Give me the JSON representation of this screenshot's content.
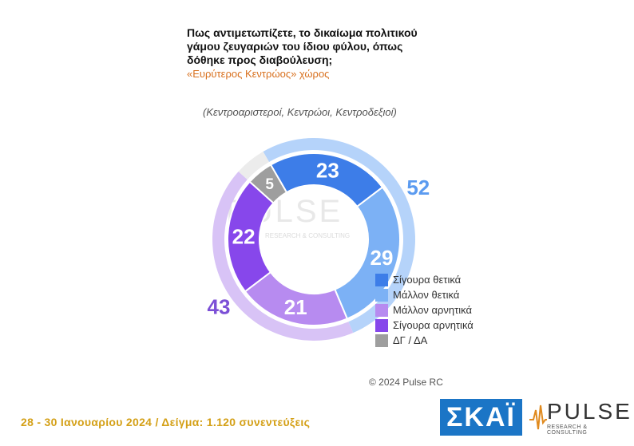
{
  "title": {
    "lines": [
      "Πως αντιμετωπίζετε, το δικαίωμα πολιτικού",
      "γάμου ζευγαριών του ίδιου φύλου, όπως",
      "δόθηκε προς διαβούλευση;"
    ],
    "scope": "«Ευρύτερος Κεντρώος» χώρος"
  },
  "subtitle": "(Κεντροαριστεροί, Κεντρώοι, Κεντροδεξιοί)",
  "chart_data": {
    "type": "pie",
    "variant": "donut",
    "slices": [
      {
        "name": "Σίγουρα θετικά",
        "value": 23,
        "color": "#3d7de8"
      },
      {
        "name": "Μάλλον θετικά",
        "value": 29,
        "color": "#7cb1f5"
      },
      {
        "name": "Μάλλον αρνητικά",
        "value": 21,
        "color": "#b78bf0"
      },
      {
        "name": "Σίγουρα αρνητικά",
        "value": 22,
        "color": "#8747eb"
      },
      {
        "name": "ΔΓ / ΔΑ",
        "value": 5,
        "color": "#9e9e9e"
      }
    ],
    "groups": [
      {
        "value": 52,
        "color": "#b5d3fa",
        "label_color": "#5b9bf0"
      },
      {
        "value": 43,
        "color": "#d8c3f6",
        "label_color": "#7b4fd6"
      },
      {
        "value": 5,
        "color": "#ececec"
      }
    ],
    "legend_position": "right"
  },
  "watermark": {
    "name": "PULSE",
    "tag": "RESEARCH & CONSULTING"
  },
  "copyright": "© 2024 Pulse RC",
  "footer": "28 - 30 Ιανουαρίου 2024  /  Δείγμα:  1.120 συνεντεύξεις",
  "logos": {
    "skai": "ΣΚΑΪ",
    "pulse": "PULSE",
    "pulse_tag": "RESEARCH & CONSULTING"
  }
}
